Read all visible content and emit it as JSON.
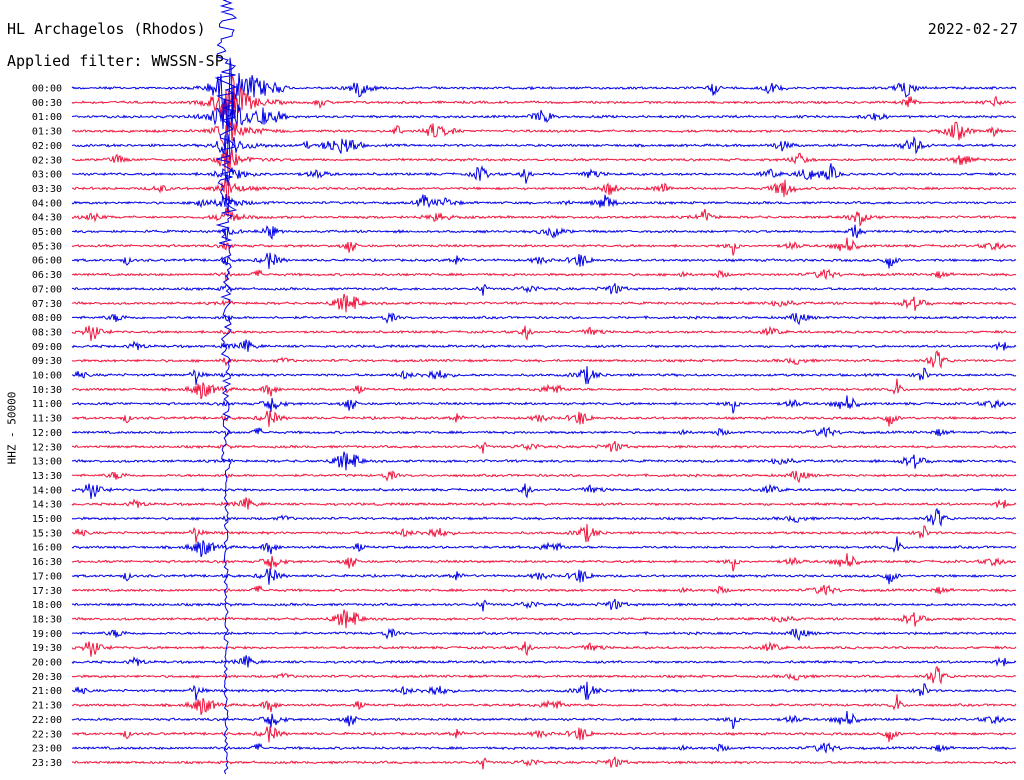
{
  "header": {
    "title": "HL Archagelos (Rhodos)",
    "filter": "Applied filter: WWSSN-SP",
    "date": "2022-02-27"
  },
  "axis": {
    "channel_label": "HHZ - 50000"
  },
  "colors": {
    "trace_a": "#0000e6",
    "trace_b": "#f0143c",
    "text": "#000000",
    "background": "#ffffff"
  },
  "chart_data": {
    "type": "line",
    "title": "HL Archagelos (Rhodos)",
    "subtitle": "Applied filter: WWSSN-SP",
    "ylabel": "HHZ - 50000",
    "xlabel": "",
    "grid": false,
    "legend": "none",
    "row_labels": [
      "00:00",
      "00:30",
      "01:00",
      "01:30",
      "02:00",
      "02:30",
      "03:00",
      "03:30",
      "04:00",
      "04:30",
      "05:00",
      "05:30",
      "06:00",
      "06:30",
      "07:00",
      "07:30",
      "08:00",
      "08:30",
      "09:00",
      "09:30",
      "10:00",
      "10:30",
      "11:00",
      "11:30",
      "12:00",
      "12:30",
      "13:00",
      "13:30",
      "14:00",
      "14:30",
      "15:00",
      "15:30",
      "16:00",
      "16:30",
      "17:00",
      "17:30",
      "18:00",
      "18:30",
      "19:00",
      "19:30",
      "20:00",
      "20:30",
      "21:00",
      "21:30",
      "22:00",
      "22:30",
      "23:00",
      "23:30"
    ],
    "series_colors": [
      "#0000e6",
      "#f0143c"
    ],
    "x_range_minutes": [
      0,
      30
    ],
    "main_event": {
      "minute": 4.9,
      "start_row": "00:00",
      "amplitude": 1.0
    }
  }
}
